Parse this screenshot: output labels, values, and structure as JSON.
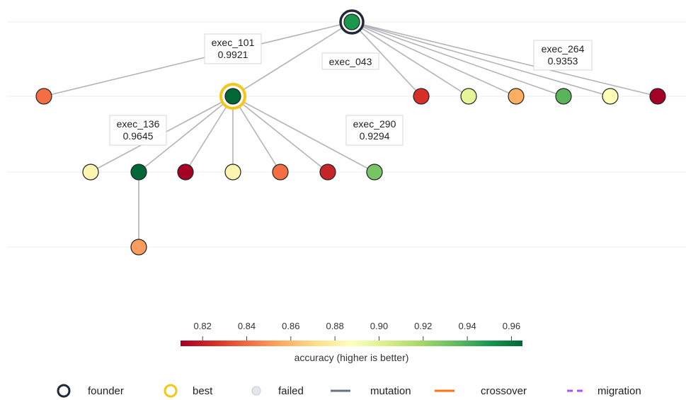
{
  "tree": {
    "levels": 4,
    "nodes": [
      {
        "id": "n0",
        "level": 0,
        "accuracy": 0.945,
        "color": "#1a9850",
        "role": "founder"
      },
      {
        "id": "n1",
        "level": 1,
        "accuracy": 0.836,
        "color": "#f46d43"
      },
      {
        "id": "n2",
        "level": 1,
        "accuracy": 0.965,
        "color": "#006837",
        "role": "best"
      },
      {
        "id": "n3",
        "level": 1,
        "accuracy": 0.826,
        "color": "#d73027"
      },
      {
        "id": "n4",
        "level": 1,
        "accuracy": 0.88,
        "color": "#e6f598"
      },
      {
        "id": "n5",
        "level": 1,
        "accuracy": 0.857,
        "color": "#fdae61"
      },
      {
        "id": "n6",
        "level": 1,
        "accuracy": 0.935,
        "color": "#5ab45a"
      },
      {
        "id": "n7",
        "level": 1,
        "accuracy": 0.875,
        "color": "#fffcb5"
      },
      {
        "id": "n8",
        "level": 1,
        "accuracy": 0.818,
        "color": "#a50026"
      },
      {
        "id": "n9",
        "level": 2,
        "accuracy": 0.874,
        "color": "#fef5b0"
      },
      {
        "id": "n10",
        "level": 2,
        "accuracy": 0.964,
        "color": "#006837"
      },
      {
        "id": "n11",
        "level": 2,
        "accuracy": 0.818,
        "color": "#a50026"
      },
      {
        "id": "n12",
        "level": 2,
        "accuracy": 0.874,
        "color": "#fef5b0"
      },
      {
        "id": "n13",
        "level": 2,
        "accuracy": 0.835,
        "color": "#f46d43"
      },
      {
        "id": "n14",
        "level": 2,
        "accuracy": 0.824,
        "color": "#c8242b"
      },
      {
        "id": "n15",
        "level": 2,
        "accuracy": 0.929,
        "color": "#78c565"
      },
      {
        "id": "n16",
        "level": 3,
        "accuracy": 0.85,
        "color": "#f99c5d"
      }
    ],
    "edges": [
      {
        "from": "n0",
        "to": "n1",
        "type": "mutation"
      },
      {
        "from": "n0",
        "to": "n2",
        "type": "mutation"
      },
      {
        "from": "n0",
        "to": "n3",
        "type": "mutation"
      },
      {
        "from": "n0",
        "to": "n4",
        "type": "mutation"
      },
      {
        "from": "n0",
        "to": "n5",
        "type": "mutation"
      },
      {
        "from": "n0",
        "to": "n6",
        "type": "mutation"
      },
      {
        "from": "n0",
        "to": "n7",
        "type": "mutation"
      },
      {
        "from": "n0",
        "to": "n8",
        "type": "mutation"
      },
      {
        "from": "n2",
        "to": "n9",
        "type": "mutation"
      },
      {
        "from": "n2",
        "to": "n10",
        "type": "mutation"
      },
      {
        "from": "n2",
        "to": "n11",
        "type": "mutation"
      },
      {
        "from": "n2",
        "to": "n12",
        "type": "mutation"
      },
      {
        "from": "n2",
        "to": "n13",
        "type": "mutation"
      },
      {
        "from": "n2",
        "to": "n14",
        "type": "mutation"
      },
      {
        "from": "n2",
        "to": "n15",
        "type": "mutation"
      },
      {
        "from": "n10",
        "to": "n16",
        "type": "mutation"
      }
    ],
    "labels": [
      {
        "name": "exec_101",
        "value": "0.9921"
      },
      {
        "name": "exec_043",
        "value": ""
      },
      {
        "name": "exec_264",
        "value": "0.9353"
      },
      {
        "name": "exec_136",
        "value": "0.9645"
      },
      {
        "name": "exec_290",
        "value": "0.9294"
      }
    ]
  },
  "colorbar": {
    "title": "accuracy (higher is better)",
    "min": 0.81,
    "max": 0.965,
    "ticks": [
      "0.82",
      "0.84",
      "0.86",
      "0.88",
      "0.90",
      "0.92",
      "0.94",
      "0.96"
    ],
    "tick_values": [
      0.82,
      0.84,
      0.86,
      0.88,
      0.9,
      0.92,
      0.94,
      0.96
    ],
    "stops": [
      "#a50026",
      "#d73027",
      "#f46d43",
      "#fdae61",
      "#fee08b",
      "#ffffbf",
      "#d9ef8b",
      "#a6d96a",
      "#66bd63",
      "#1a9850",
      "#006837"
    ]
  },
  "legend": {
    "items": [
      {
        "label": "founder",
        "kind": "founder",
        "color": "#1f2937"
      },
      {
        "label": "best",
        "kind": "best",
        "color": "#f5c518"
      },
      {
        "label": "failed",
        "kind": "failed",
        "color": "#e5e7eb"
      },
      {
        "label": "mutation",
        "kind": "mutation",
        "color": "#6b7280"
      },
      {
        "label": "crossover",
        "kind": "crossover",
        "color": "#f97316"
      },
      {
        "label": "migration",
        "kind": "migration",
        "color": "#a855f7"
      }
    ]
  },
  "style": {
    "edge_color": "#b3b3b8",
    "node_stroke": "#222222",
    "founder_ring": "#1f2937",
    "best_ring": "#f5c518",
    "grid_color": "#ececec"
  }
}
